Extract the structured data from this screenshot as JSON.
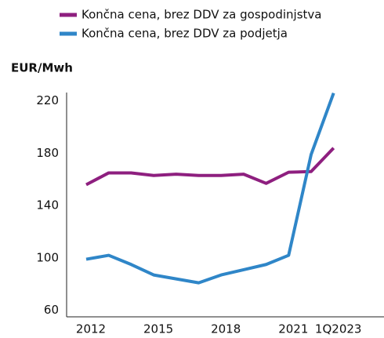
{
  "chart_data": {
    "type": "line",
    "y_label": "EUR/Mwh",
    "categories": [
      "2012",
      null,
      null,
      "2015",
      null,
      null,
      "2018",
      null,
      null,
      "2021",
      null,
      "1Q2023"
    ],
    "series": [
      {
        "name": "Končna cena, brez DDV za gospodinjstva",
        "color": "#8e1f7f",
        "values": [
          156,
          165,
          165,
          163,
          164,
          163,
          163,
          164,
          157,
          165.5,
          166,
          184
        ]
      },
      {
        "name": "Končna cena, brez DDV za podjetja",
        "color": "#2f86c8",
        "values": [
          99,
          102,
          95,
          87,
          84,
          81,
          87,
          91,
          95,
          102,
          179,
          226
        ]
      }
    ],
    "ylim": [
      55,
      230
    ],
    "yticks": [
      60,
      100,
      140,
      180,
      220
    ]
  }
}
